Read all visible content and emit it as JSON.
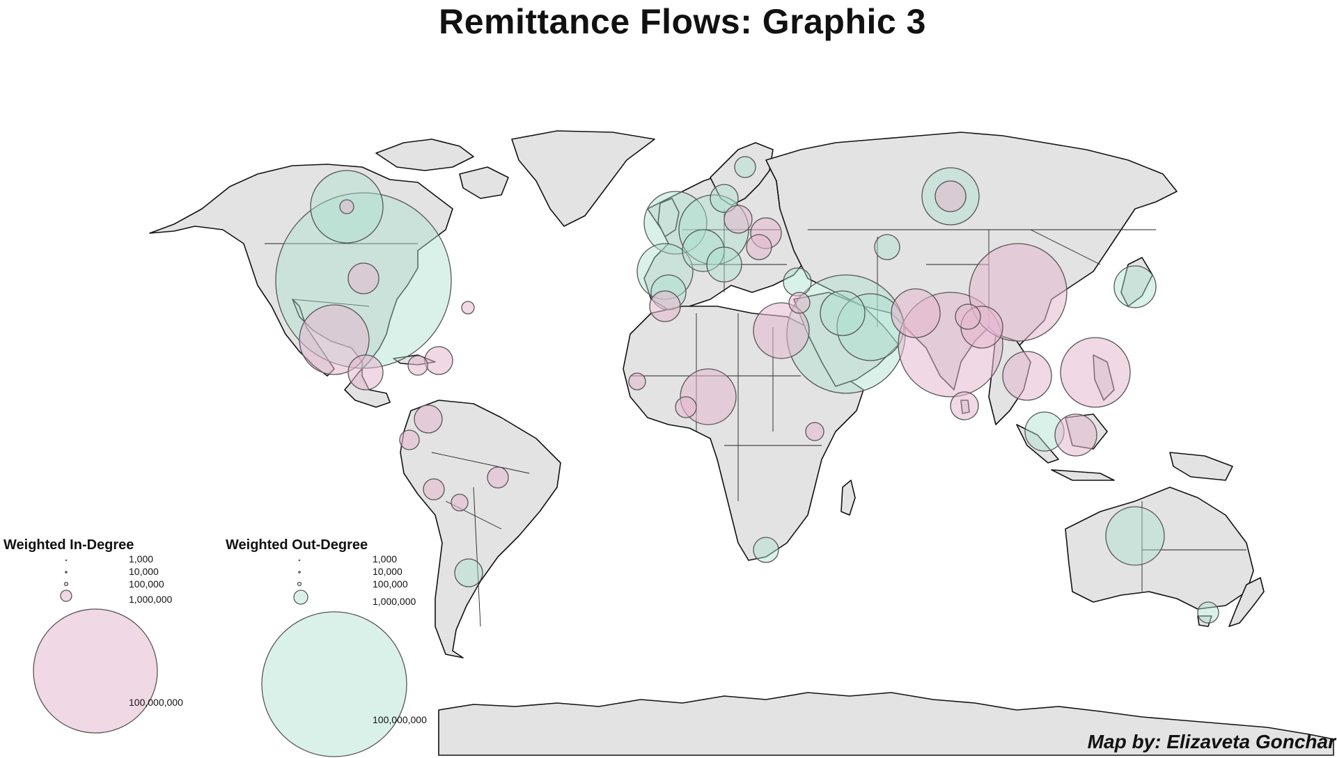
{
  "title": "Remittance Flows: Graphic 3",
  "credit": "Map by: Elizaveta Gonchar",
  "legend_in": {
    "title": "Weighted In-Degree",
    "values": [
      "1,000",
      "10,000",
      "100,000",
      "1,000,000",
      "100,000,000"
    ]
  },
  "legend_out": {
    "title": "Weighted Out-Degree",
    "values": [
      "1,000",
      "10,000",
      "100,000",
      "1,000,000",
      "100,000,000"
    ]
  },
  "colors": {
    "in_degree": "#e6b8cf",
    "out_degree": "#aee0cf",
    "land": "#e3e3e3",
    "outline": "#111111"
  }
}
